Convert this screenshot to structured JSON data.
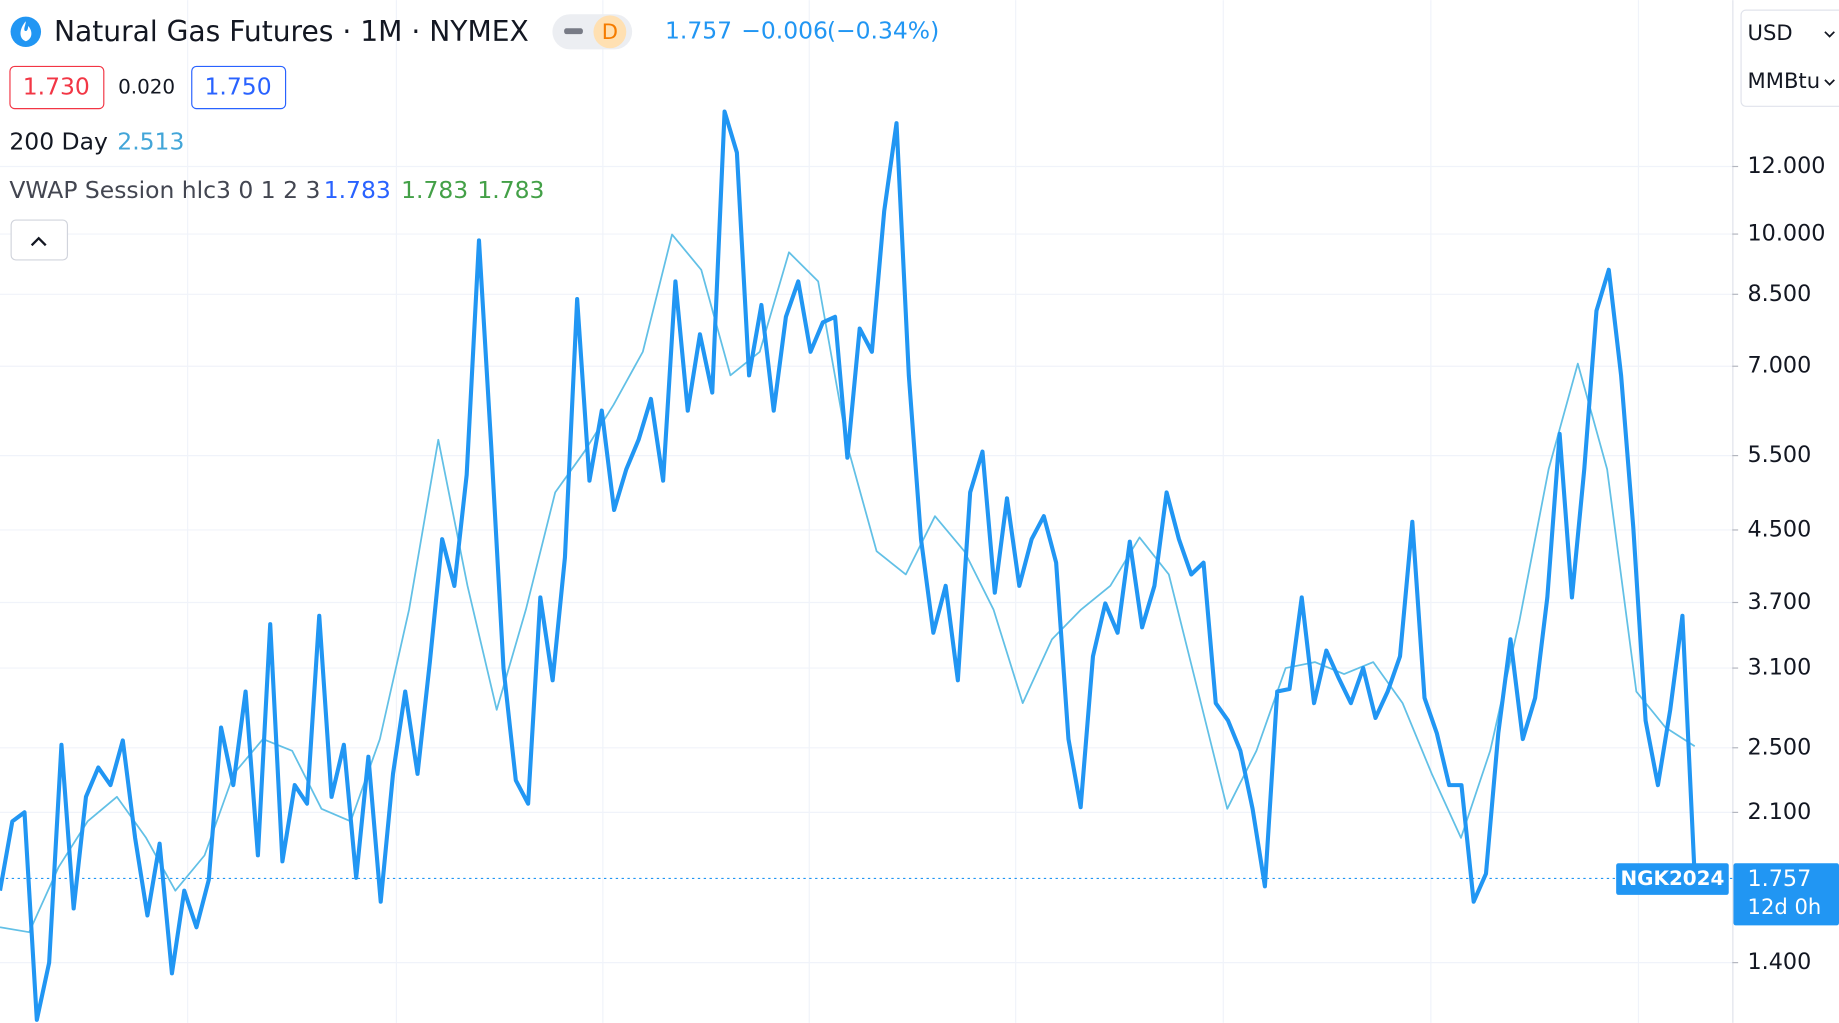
{
  "header": {
    "title": "Natural Gas Futures · 1M · NYMEX",
    "interval_badge": "D",
    "change": "−0.006",
    "change_pct": "(−0.34%)",
    "box_left": "1.730",
    "spread": "0.020",
    "box_right": "1.750",
    "ma_value": "2.513",
    "vwap_label": "VWAP Session hlc3 0 1 2 3",
    "vwap_values": [
      "1.783",
      "1.783",
      "1.783"
    ],
    "currency": "USD",
    "unit": "MMBtu",
    "countdown": "12d 0h"
  },
  "chart_data": {
    "type": "line",
    "log_scale": true,
    "grid": true,
    "ylim": [
      1.19,
      18.8
    ],
    "yticks": [
      {
        "value": 12,
        "label": "12.000"
      },
      {
        "value": 10,
        "label": "10.000"
      },
      {
        "value": 8.5,
        "label": "8.500"
      },
      {
        "value": 7,
        "label": "7.000"
      },
      {
        "value": 5.5,
        "label": "5.500"
      },
      {
        "value": 4.5,
        "label": "4.500"
      },
      {
        "value": 3.7,
        "label": "3.700"
      },
      {
        "value": 3.1,
        "label": "3.100"
      },
      {
        "value": 2.5,
        "label": "2.500"
      },
      {
        "value": 2.1,
        "label": "2.100"
      },
      {
        "value": 1.4,
        "label": "1.400"
      }
    ],
    "last_price": 1.757,
    "series": [
      {
        "name": "NGK2024",
        "color": "#2196f3",
        "values": [
          1.7,
          2.05,
          2.1,
          1.2,
          1.4,
          2.52,
          1.62,
          2.19,
          2.37,
          2.26,
          2.55,
          1.96,
          1.59,
          1.93,
          1.36,
          1.7,
          1.54,
          1.75,
          2.64,
          2.26,
          2.91,
          1.87,
          3.49,
          1.84,
          2.26,
          2.15,
          3.57,
          2.19,
          2.52,
          1.76,
          2.44,
          1.65,
          2.33,
          2.91,
          2.33,
          3.15,
          4.39,
          3.87,
          5.22,
          9.83,
          5.65,
          3.1,
          2.29,
          2.15,
          3.75,
          3.0,
          4.18,
          8.39,
          5.14,
          6.21,
          4.75,
          5.3,
          5.74,
          6.41,
          5.14,
          8.8,
          6.21,
          7.63,
          6.52,
          13.92,
          12.46,
          6.83,
          8.26,
          6.21,
          8.0,
          8.8,
          7.28,
          7.88,
          8.0,
          5.47,
          7.75,
          7.28,
          10.64,
          13.49,
          6.83,
          4.39,
          3.41,
          3.87,
          3.0,
          4.98,
          5.56,
          3.8,
          4.9,
          3.87,
          4.39,
          4.67,
          4.12,
          2.56,
          2.13,
          3.2,
          3.69,
          3.41,
          4.36,
          3.46,
          3.87,
          4.98,
          4.39,
          3.99,
          4.12,
          2.82,
          2.69,
          2.48,
          2.12,
          1.72,
          2.91,
          2.93,
          3.75,
          2.82,
          3.25,
          3.02,
          2.82,
          3.1,
          2.71,
          2.91,
          3.2,
          4.6,
          2.86,
          2.6,
          2.26,
          2.26,
          1.65,
          1.78,
          2.6,
          3.35,
          2.56,
          2.86,
          3.75,
          5.83,
          3.75,
          5.3,
          8.13,
          9.08,
          6.83,
          4.53,
          2.69,
          2.26,
          2.77,
          3.57,
          1.76
        ]
      },
      {
        "name": "200 Day",
        "color": "#62c0e6",
        "values": [
          1.54,
          1.52,
          1.81,
          2.05,
          2.19,
          1.96,
          1.7,
          1.87,
          2.33,
          2.56,
          2.48,
          2.12,
          2.05,
          2.56,
          3.63,
          5.74,
          3.87,
          2.77,
          3.63,
          4.98,
          5.56,
          6.31,
          7.28,
          9.99,
          9.08,
          6.83,
          7.28,
          9.52,
          8.8,
          5.65,
          4.25,
          3.99,
          4.67,
          4.25,
          3.63,
          2.82,
          3.35,
          3.63,
          3.87,
          4.41,
          3.99,
          2.91,
          2.12,
          2.48,
          3.1,
          3.15,
          3.05,
          3.15,
          2.82,
          2.33,
          1.96,
          2.48,
          3.52,
          5.3,
          7.05,
          5.3,
          2.91,
          2.64,
          2.51
        ]
      }
    ]
  }
}
